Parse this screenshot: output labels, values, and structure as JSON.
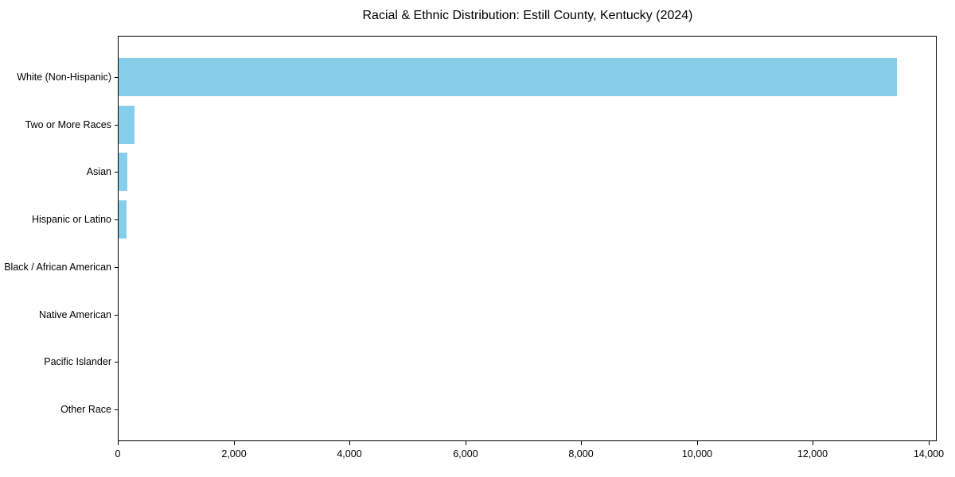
{
  "page": {
    "background_color": "#ffffff",
    "text_color": "#000000"
  },
  "chart_data": {
    "type": "bar",
    "orientation": "horizontal",
    "title": "Racial & Ethnic Distribution: Estill County, Kentucky (2024)",
    "categories": [
      "White (Non-Hispanic)",
      "Two or More Races",
      "Asian",
      "Hispanic or Latino",
      "Black / African American",
      "Native American",
      "Pacific Islander",
      "Other Race"
    ],
    "values": [
      13440,
      280,
      150,
      135,
      0,
      0,
      0,
      0
    ],
    "bar_color": "#87CEEB",
    "xlabel": "",
    "ylabel": "",
    "xlim": [
      0,
      14126
    ],
    "x_ticks": [
      0,
      2000,
      4000,
      6000,
      8000,
      10000,
      12000,
      14000
    ],
    "x_tick_labels": [
      "0",
      "2,000",
      "4,000",
      "6,000",
      "8,000",
      "10,000",
      "12,000",
      "14,000"
    ],
    "grid": false,
    "legend": "none",
    "frame": "full-box",
    "spine_color": "#000000"
  }
}
